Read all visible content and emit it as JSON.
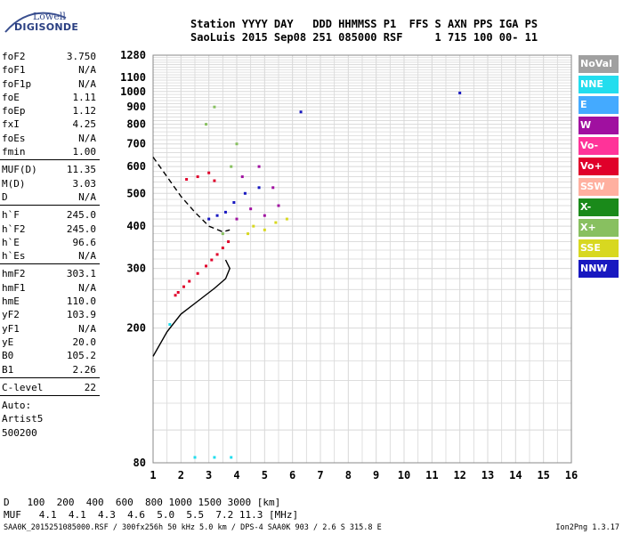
{
  "logo": {
    "top": "Lowell",
    "bottom": "DIGISONDE"
  },
  "header": {
    "line1": "Station YYYY DAY   DDD HHMMSS P1  FFS S AXN PPS IGA PS",
    "line2": "SaoLuis 2015 Sep08 251 085000 RSF     1 715 100 00- 11"
  },
  "params": [
    {
      "name": "foF2",
      "value": "3.750"
    },
    {
      "name": "foF1",
      "value": "N/A"
    },
    {
      "name": "foF1p",
      "value": "N/A"
    },
    {
      "name": "foE",
      "value": "1.11"
    },
    {
      "name": "foEp",
      "value": "1.12"
    },
    {
      "name": "fxI",
      "value": "4.25"
    },
    {
      "name": "foEs",
      "value": "N/A"
    },
    {
      "name": "fmin",
      "value": "1.00"
    },
    {
      "sep": true
    },
    {
      "name": "MUF(D)",
      "value": "11.35"
    },
    {
      "name": "M(D)",
      "value": "3.03"
    },
    {
      "name": "D",
      "value": "N/A"
    },
    {
      "sep": true
    },
    {
      "name": "h`F",
      "value": "245.0"
    },
    {
      "name": "h`F2",
      "value": "245.0"
    },
    {
      "name": "h`E",
      "value": "96.6"
    },
    {
      "name": "h`Es",
      "value": "N/A"
    },
    {
      "sep": true
    },
    {
      "name": "hmF2",
      "value": "303.1"
    },
    {
      "name": "hmF1",
      "value": "N/A"
    },
    {
      "name": "hmE",
      "value": "110.0"
    },
    {
      "name": "yF2",
      "value": "103.9"
    },
    {
      "name": "yF1",
      "value": "N/A"
    },
    {
      "name": "yE",
      "value": "20.0"
    },
    {
      "name": "B0",
      "value": "105.2"
    },
    {
      "name": "B1",
      "value": "2.26"
    },
    {
      "sep": true
    },
    {
      "name": "C-level",
      "value": "22"
    },
    {
      "sep": true
    },
    {
      "text": "Auto:"
    },
    {
      "text": "Artist5"
    },
    {
      "text": "500200"
    }
  ],
  "legend": [
    {
      "label": "NoVal",
      "color": "#a0a0a0"
    },
    {
      "label": "NNE",
      "color": "#22ddee"
    },
    {
      "label": "E",
      "color": "#44aaff"
    },
    {
      "label": "W",
      "color": "#a010a0"
    },
    {
      "label": "Vo-",
      "color": "#ff3399"
    },
    {
      "label": "Vo+",
      "color": "#e0002a"
    },
    {
      "label": "SSW",
      "color": "#ffb0a0"
    },
    {
      "label": "X-",
      "color": "#1a8a1a"
    },
    {
      "label": "X+",
      "color": "#88c060"
    },
    {
      "label": "SSE",
      "color": "#d8d820"
    },
    {
      "label": "NNW",
      "color": "#1818c0"
    }
  ],
  "muf_table": {
    "d_label": "D",
    "d_values": "100  200  400  600  800 1000 1500 3000 [km]",
    "muf_label": "MUF",
    "muf_values": "4.1  4.1  4.3  4.6  5.0  5.5  7.2 11.3 [MHz]"
  },
  "footer": "SAA0K_2015251085000.RSF / 300fx256h 50 kHz 5.0 km / DPS-4 SAA0K 903 / 2.6 S 315.8 E",
  "version": "Ion2Png 1.3.17",
  "chart_data": {
    "type": "scatter",
    "title": "",
    "xlabel": "",
    "ylabel": "",
    "xlim": [
      1,
      16
    ],
    "ylim": [
      80,
      1280
    ],
    "x_ticks": [
      1,
      2,
      3,
      4,
      5,
      6,
      7,
      8,
      9,
      10,
      11,
      12,
      13,
      14,
      15,
      16
    ],
    "y_ticks": [
      80,
      200,
      300,
      400,
      500,
      600,
      700,
      800,
      900,
      1000,
      1100,
      1280
    ],
    "x_minor_step": 0.5,
    "y_scale": "log",
    "grid": true,
    "legend_position": "right",
    "series": [
      {
        "color": "#e0002a",
        "points": [
          [
            1.8,
            250
          ],
          [
            1.9,
            255
          ],
          [
            2.1,
            265
          ],
          [
            2.3,
            275
          ],
          [
            2.6,
            290
          ],
          [
            2.9,
            305
          ],
          [
            3.1,
            318
          ],
          [
            3.3,
            330
          ],
          [
            3.5,
            345
          ],
          [
            3.7,
            360
          ],
          [
            2.2,
            550
          ],
          [
            2.6,
            560
          ],
          [
            3.0,
            575
          ],
          [
            3.2,
            545
          ]
        ]
      },
      {
        "color": "#1818c0",
        "points": [
          [
            3.0,
            420
          ],
          [
            3.3,
            430
          ],
          [
            3.6,
            440
          ],
          [
            3.9,
            470
          ],
          [
            4.3,
            500
          ],
          [
            4.8,
            520
          ],
          [
            12.0,
            990
          ],
          [
            6.3,
            870
          ]
        ]
      },
      {
        "color": "#a010a0",
        "points": [
          [
            4.0,
            420
          ],
          [
            4.5,
            450
          ],
          [
            5.0,
            430
          ],
          [
            5.5,
            460
          ],
          [
            4.2,
            560
          ],
          [
            4.8,
            600
          ],
          [
            5.3,
            520
          ]
        ]
      },
      {
        "color": "#d8d820",
        "points": [
          [
            4.6,
            400
          ],
          [
            5.0,
            390
          ],
          [
            5.4,
            410
          ],
          [
            5.8,
            420
          ],
          [
            4.4,
            380
          ]
        ]
      },
      {
        "color": "#88c060",
        "points": [
          [
            3.5,
            380
          ],
          [
            3.8,
            600
          ],
          [
            4.0,
            700
          ],
          [
            3.2,
            900
          ],
          [
            2.9,
            800
          ]
        ]
      },
      {
        "color": "#22ddee",
        "points": [
          [
            1.6,
            205
          ],
          [
            2.5,
            83
          ],
          [
            3.2,
            83
          ],
          [
            3.8,
            83
          ]
        ]
      }
    ],
    "profile_curve": [
      [
        1.0,
        165
      ],
      [
        1.5,
        195
      ],
      [
        2.0,
        220
      ],
      [
        2.6,
        240
      ],
      [
        3.2,
        262
      ],
      [
        3.6,
        280
      ],
      [
        3.75,
        300
      ],
      [
        3.6,
        318
      ]
    ],
    "extrapolated_curve": [
      [
        1.0,
        640
      ],
      [
        1.5,
        560
      ],
      [
        2.0,
        490
      ],
      [
        2.5,
        440
      ],
      [
        3.0,
        400
      ],
      [
        3.5,
        385
      ],
      [
        3.75,
        390
      ]
    ]
  }
}
